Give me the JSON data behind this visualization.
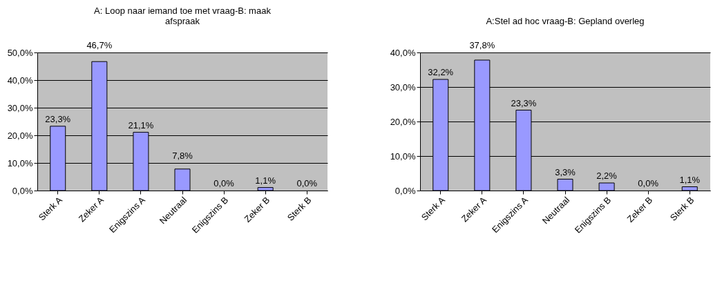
{
  "chart_data": [
    {
      "type": "bar",
      "title": "A: Loop naar iemand toe met vraag-B: maak afspraak",
      "categories": [
        "Sterk A",
        "Zeker A",
        "Enigszins A",
        "Neutraal",
        "Enigszins B",
        "Zeker B",
        "Sterk B"
      ],
      "values": [
        23.3,
        46.7,
        21.1,
        7.8,
        0.0,
        1.1,
        0.0
      ],
      "color": "#9999ff",
      "value_labels": [
        "23,3%",
        "46,7%",
        "21,1%",
        "7,8%",
        "0,0%",
        "1,1%",
        "0,0%"
      ],
      "ylim": [
        0,
        50
      ],
      "yticks": [
        {
          "value": 0,
          "label": "0,0%"
        },
        {
          "value": 10,
          "label": "10,0%"
        },
        {
          "value": 20,
          "label": "20,0%"
        },
        {
          "value": 30,
          "label": "30,0%"
        },
        {
          "value": 40,
          "label": "40,0%"
        },
        {
          "value": 50,
          "label": "50,0%"
        }
      ],
      "grid": "y"
    },
    {
      "type": "bar",
      "title": "A:Stel ad hoc vraag-B: Gepland overleg",
      "categories": [
        "Sterk A",
        "Zeker A",
        "Enigszins A",
        "Neutraal",
        "Enigszins B",
        "Zeker B",
        "Sterk B"
      ],
      "values": [
        32.2,
        37.8,
        23.3,
        3.3,
        2.2,
        0.0,
        1.1
      ],
      "color": "#9999ff",
      "value_labels": [
        "32,2%",
        "37,8%",
        "23,3%",
        "3,3%",
        "2,2%",
        "0,0%",
        "1,1%"
      ],
      "ylim": [
        0,
        40
      ],
      "yticks": [
        {
          "value": 0,
          "label": "0,0%"
        },
        {
          "value": 10,
          "label": "10,0%"
        },
        {
          "value": 20,
          "label": "20,0%"
        },
        {
          "value": 30,
          "label": "30,0%"
        },
        {
          "value": 40,
          "label": "40,0%"
        }
      ],
      "grid": "y"
    }
  ]
}
